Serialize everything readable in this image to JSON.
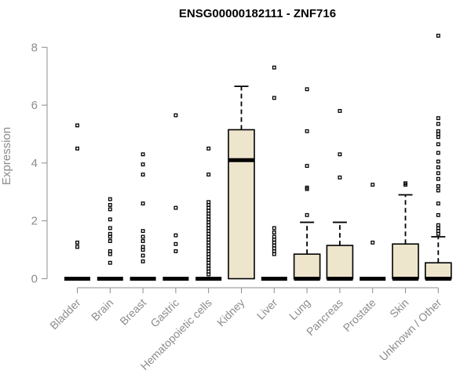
{
  "chart_data": {
    "type": "boxplot",
    "title": "ENSG00000182111 - ZNF716",
    "ylabel": "Expression",
    "xlabel": "",
    "ylim": [
      0,
      8.4
    ],
    "yticks": [
      "0",
      "2",
      "4",
      "6",
      "8"
    ],
    "box_fill": "#ede5cc",
    "categories": [
      "Bladder",
      "Brain",
      "Breast",
      "Gastric",
      "Hematopoietic cells",
      "Kidney",
      "Liver",
      "Lung",
      "Pancreas",
      "Prostate",
      "Skin",
      "Unknown / Other"
    ],
    "boxes": [
      {
        "category": "Bladder",
        "q1": 0,
        "median": 0,
        "q3": 0,
        "whisker_low": 0,
        "whisker_high": 0,
        "outliers": [
          1.1,
          1.25,
          4.5,
          5.3
        ]
      },
      {
        "category": "Brain",
        "q1": 0,
        "median": 0,
        "q3": 0,
        "whisker_low": 0,
        "whisker_high": 0,
        "outliers": [
          0.55,
          0.85,
          0.95,
          1.3,
          1.45,
          1.55,
          1.75,
          2.05,
          2.4,
          2.55,
          2.75
        ]
      },
      {
        "category": "Breast",
        "q1": 0,
        "median": 0,
        "q3": 0,
        "whisker_low": 0,
        "whisker_high": 0,
        "outliers": [
          0.6,
          0.8,
          1.0,
          1.1,
          1.3,
          1.45,
          1.65,
          2.6,
          3.6,
          3.95,
          4.3
        ]
      },
      {
        "category": "Gastric",
        "q1": 0,
        "median": 0,
        "q3": 0,
        "whisker_low": 0,
        "whisker_high": 0,
        "outliers": [
          0.95,
          1.2,
          1.5,
          2.45,
          5.65
        ]
      },
      {
        "category": "Hematopoietic cells",
        "q1": 0,
        "median": 0,
        "q3": 0,
        "whisker_low": 0,
        "whisker_high": 0,
        "outliers": [
          0.15,
          0.25,
          0.35,
          0.45,
          0.55,
          0.65,
          0.75,
          0.85,
          0.95,
          1.05,
          1.15,
          1.25,
          1.35,
          1.45,
          1.55,
          1.65,
          1.75,
          1.85,
          1.95,
          2.05,
          2.15,
          2.25,
          2.35,
          2.45,
          2.55,
          2.65,
          3.6,
          4.5
        ]
      },
      {
        "category": "Kidney",
        "q1": 0,
        "median": 4.1,
        "q3": 5.15,
        "whisker_low": 0,
        "whisker_high": 6.65,
        "outliers": []
      },
      {
        "category": "Liver",
        "q1": 0,
        "median": 0,
        "q3": 0,
        "whisker_low": 0,
        "whisker_high": 0,
        "outliers": [
          0.85,
          0.95,
          1.05,
          1.15,
          1.25,
          1.35,
          1.45,
          1.6,
          1.75,
          6.25,
          7.3
        ]
      },
      {
        "category": "Lung",
        "q1": 0,
        "median": 0,
        "q3": 0.85,
        "whisker_low": 0,
        "whisker_high": 1.95,
        "outliers": [
          2.2,
          3.1,
          3.15,
          3.9,
          5.1,
          6.55
        ]
      },
      {
        "category": "Pancreas",
        "q1": 0,
        "median": 0,
        "q3": 1.15,
        "whisker_low": 0,
        "whisker_high": 1.95,
        "outliers": [
          3.5,
          4.3,
          5.8
        ]
      },
      {
        "category": "Prostate",
        "q1": 0,
        "median": 0,
        "q3": 0,
        "whisker_low": 0,
        "whisker_high": 0,
        "outliers": [
          1.25,
          3.25
        ]
      },
      {
        "category": "Skin",
        "q1": 0,
        "median": 0,
        "q3": 1.2,
        "whisker_low": 0,
        "whisker_high": 2.9,
        "outliers": [
          3.25,
          3.3
        ]
      },
      {
        "category": "Unknown / Other",
        "q1": 0,
        "median": 0,
        "q3": 0.55,
        "whisker_low": 0,
        "whisker_high": 1.45,
        "outliers": [
          1.55,
          1.65,
          1.75,
          1.85,
          2.2,
          2.6,
          3.05,
          3.2,
          3.45,
          3.65,
          3.85,
          4.05,
          4.35,
          4.65,
          4.9,
          5.0,
          5.1,
          5.35,
          5.55,
          8.4
        ]
      }
    ]
  }
}
